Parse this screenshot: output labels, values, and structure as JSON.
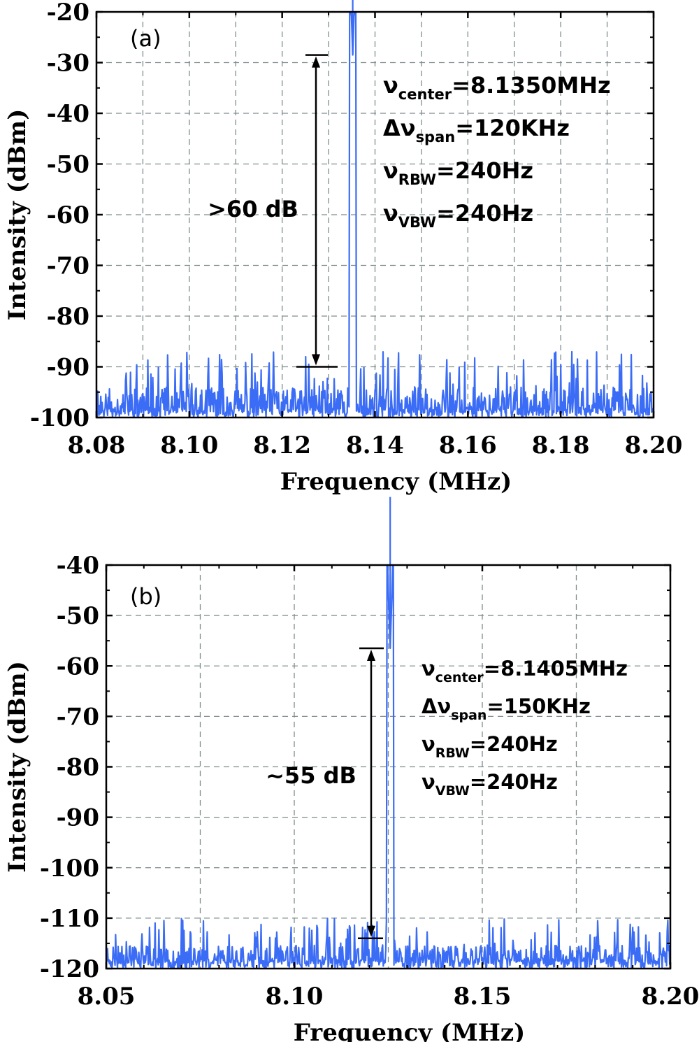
{
  "chart_data": [
    {
      "panel": "(a)",
      "type": "line",
      "xlabel": "Frequency (MHz)",
      "ylabel": "Intensity (dBm)",
      "xlim": [
        8.08,
        8.2
      ],
      "ylim": [
        -100,
        -20
      ],
      "x_ticks": [
        "8.08",
        "8.10",
        "8.12",
        "8.14",
        "8.16",
        "8.18",
        "8.20"
      ],
      "y_ticks": [
        "-20",
        "-30",
        "-40",
        "-50",
        "-60",
        "-70",
        "-80",
        "-90",
        "-100"
      ],
      "grid": true,
      "peak": {
        "x": 8.1352,
        "y": -28.5
      },
      "noise_floor": {
        "min": -100,
        "max": -89
      },
      "annotation": ">60 dB",
      "arrow_range_dbm": [
        -28.5,
        -90
      ],
      "params": [
        {
          "sym": "ν",
          "sub": "center",
          "rest": "=8.1350MHz"
        },
        {
          "sym": "Δν",
          "sub": "span",
          "rest": "=120KHz"
        },
        {
          "sym": "ν",
          "sub": "RBW",
          "rest": "=240Hz"
        },
        {
          "sym": "ν",
          "sub": "VBW",
          "rest": "=240Hz"
        }
      ]
    },
    {
      "panel": "(b)",
      "type": "line",
      "xlabel": "Frequency (MHz)",
      "ylabel": "Intensity (dBm)",
      "xlim": [
        8.05,
        8.2
      ],
      "ylim": [
        -120,
        -40
      ],
      "x_ticks": [
        "8.05",
        "8.10",
        "8.15",
        "8.20"
      ],
      "y_ticks": [
        "-40",
        "-50",
        "-60",
        "-70",
        "-80",
        "-90",
        "-100",
        "-110",
        "-120"
      ],
      "grid": true,
      "peak": {
        "x": 8.1255,
        "y": -56.5
      },
      "noise_floor": {
        "min": -120,
        "max": -112
      },
      "annotation": "~55 dB",
      "arrow_range_dbm": [
        -56.5,
        -114
      ],
      "params": [
        {
          "sym": "ν",
          "sub": "center",
          "rest": "=8.1405MHz"
        },
        {
          "sym": "Δν",
          "sub": "span",
          "rest": "=150KHz"
        },
        {
          "sym": "ν",
          "sub": "RBW",
          "rest": "=240Hz"
        },
        {
          "sym": "ν",
          "sub": "VBW",
          "rest": "=240Hz"
        }
      ]
    }
  ]
}
